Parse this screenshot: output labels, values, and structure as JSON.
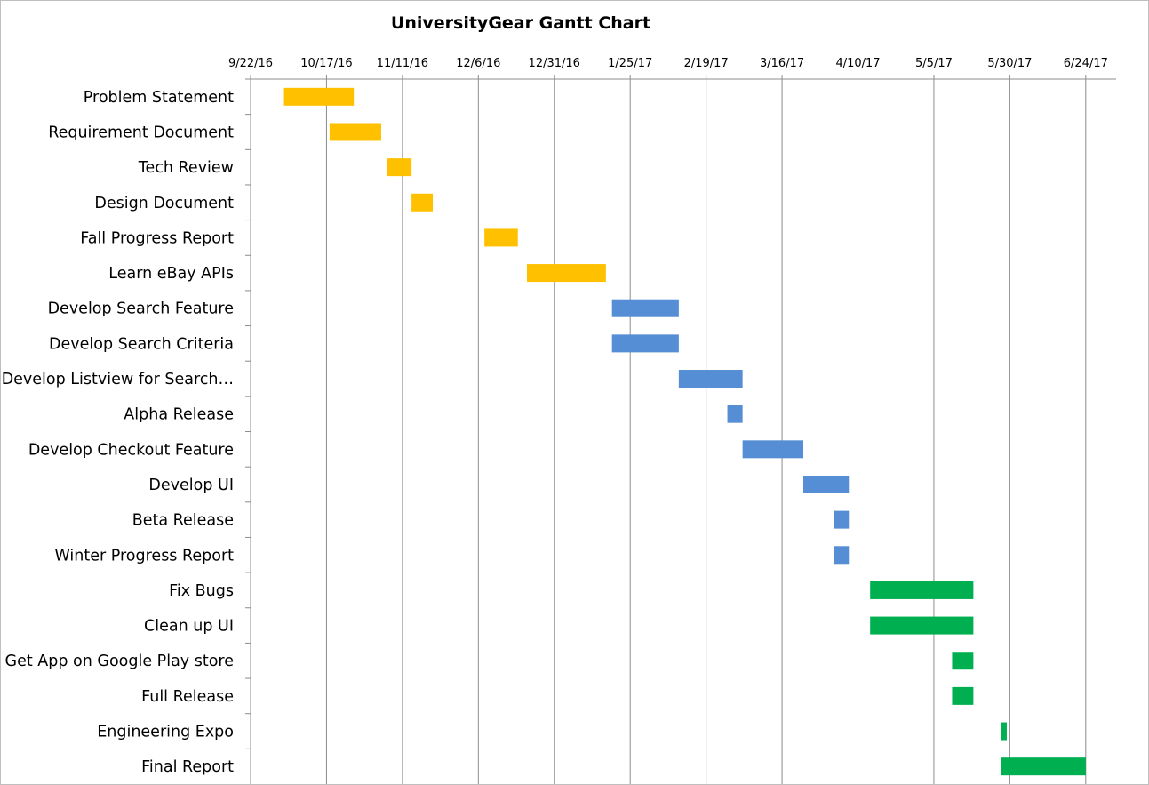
{
  "chart_data": {
    "type": "bar",
    "subtype": "gantt",
    "title": "UniversityGear Gantt Chart",
    "xlabel": "",
    "ylabel": "",
    "x_axis": {
      "scale": "date",
      "position": "top",
      "range": [
        "2016-09-22",
        "2017-07-04"
      ],
      "tick_labels": [
        "9/22/16",
        "10/17/16",
        "11/11/16",
        "12/6/16",
        "12/31/16",
        "1/25/17",
        "2/19/17",
        "3/16/17",
        "4/10/17",
        "5/5/17",
        "5/30/17",
        "6/24/17"
      ]
    },
    "grid": {
      "vertical": true,
      "horizontal": false
    },
    "legend": "none",
    "phase_colors": {
      "fall": "#FFC000",
      "winter": "#558ED5",
      "spring": "#00B050"
    },
    "tasks": [
      {
        "label": "Problem Statement",
        "start": "2016-10-03",
        "end": "2016-10-26",
        "phase": "fall"
      },
      {
        "label": "Requirement Document",
        "start": "2016-10-18",
        "end": "2016-11-04",
        "phase": "fall"
      },
      {
        "label": "Tech Review",
        "start": "2016-11-06",
        "end": "2016-11-14",
        "phase": "fall"
      },
      {
        "label": "Design Document",
        "start": "2016-11-14",
        "end": "2016-11-21",
        "phase": "fall"
      },
      {
        "label": "Fall Progress Report",
        "start": "2016-12-08",
        "end": "2016-12-19",
        "phase": "fall"
      },
      {
        "label": "Learn eBay APIs",
        "start": "2016-12-22",
        "end": "2017-01-17",
        "phase": "fall"
      },
      {
        "label": "Develop Search Feature",
        "start": "2017-01-19",
        "end": "2017-02-10",
        "phase": "winter"
      },
      {
        "label": "Develop Search Criteria",
        "start": "2017-01-19",
        "end": "2017-02-10",
        "phase": "winter"
      },
      {
        "label": "Develop Listview for Search…",
        "start": "2017-02-10",
        "end": "2017-03-03",
        "phase": "winter"
      },
      {
        "label": "Alpha Release",
        "start": "2017-02-26",
        "end": "2017-03-03",
        "phase": "winter"
      },
      {
        "label": "Develop Checkout Feature",
        "start": "2017-03-03",
        "end": "2017-03-23",
        "phase": "winter"
      },
      {
        "label": "Develop UI",
        "start": "2017-03-23",
        "end": "2017-04-07",
        "phase": "winter"
      },
      {
        "label": "Beta Release",
        "start": "2017-04-02",
        "end": "2017-04-07",
        "phase": "winter"
      },
      {
        "label": "Winter Progress Report",
        "start": "2017-04-02",
        "end": "2017-04-07",
        "phase": "winter"
      },
      {
        "label": "Fix Bugs",
        "start": "2017-04-14",
        "end": "2017-05-18",
        "phase": "spring"
      },
      {
        "label": "Clean up UI",
        "start": "2017-04-14",
        "end": "2017-05-18",
        "phase": "spring"
      },
      {
        "label": "Get App on Google Play store",
        "start": "2017-05-11",
        "end": "2017-05-18",
        "phase": "spring"
      },
      {
        "label": "Full Release",
        "start": "2017-05-11",
        "end": "2017-05-18",
        "phase": "spring"
      },
      {
        "label": "Engineering Expo",
        "start": "2017-05-27",
        "end": "2017-05-29",
        "phase": "spring"
      },
      {
        "label": "Final Report",
        "start": "2017-05-27",
        "end": "2017-06-24",
        "phase": "spring"
      }
    ]
  }
}
